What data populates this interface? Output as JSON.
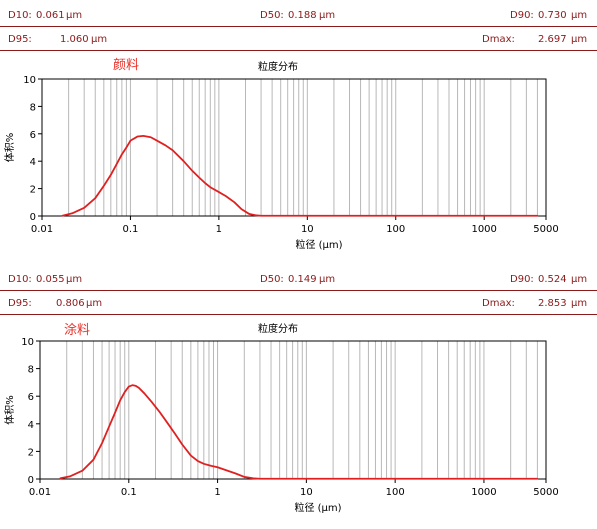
{
  "panels": [
    {
      "d10_label": "D10:",
      "d10_value": "0.061",
      "d10_unit": "μm",
      "d50_label": "D50:",
      "d50_value": "0.188",
      "d50_unit": "μm",
      "d90_label": "D90:",
      "d90_value": "0.730",
      "d90_unit": "μm",
      "d95_label": "D95:",
      "d95_value": "1.060",
      "d95_unit": "μm",
      "dmax_label": "Dmax:",
      "dmax_value": "2.697",
      "dmax_unit": "μm",
      "sample_name": "颜料",
      "chart_title": "粒度分布"
    },
    {
      "d10_label": "D10:",
      "d10_value": "0.055",
      "d10_unit": "μm",
      "d50_label": "D50:",
      "d50_value": "0.149",
      "d50_unit": "μm",
      "d90_label": "D90:",
      "d90_value": "0.524",
      "d90_unit": "μm",
      "d95_label": "D95:",
      "d95_value": "0.806",
      "d95_unit": "μm",
      "dmax_label": "Dmax:",
      "dmax_value": "2.853",
      "dmax_unit": "μm",
      "sample_name": "涂料",
      "chart_title": "粒度分布"
    }
  ],
  "chart_data": [
    {
      "type": "line",
      "title": "粒度分布",
      "xlabel": "粒径 (μm)",
      "ylabel": "体积%",
      "x_scale": "log",
      "xlim": [
        0.01,
        5000
      ],
      "ylim": [
        0,
        10
      ],
      "x_ticks": [
        "0.01",
        "0.1",
        "1",
        "10",
        "100",
        "1000",
        "5000"
      ],
      "y_ticks": [
        "0",
        "2",
        "4",
        "6",
        "8",
        "10"
      ],
      "grid": "vertical",
      "line_color": "#e02020",
      "series": [
        {
          "x": [
            0.017,
            0.022,
            0.03,
            0.04,
            0.05,
            0.06,
            0.07,
            0.08,
            0.09,
            0.1,
            0.12,
            0.14,
            0.17,
            0.2,
            0.25,
            0.3,
            0.4,
            0.5,
            0.6,
            0.7,
            0.8,
            1.0,
            1.2,
            1.5,
            1.8,
            2.2,
            2.6,
            3.0,
            10,
            100,
            1000,
            4000
          ],
          "y": [
            0.02,
            0.2,
            0.6,
            1.3,
            2.2,
            3.0,
            3.8,
            4.5,
            5.0,
            5.5,
            5.8,
            5.85,
            5.75,
            5.5,
            5.15,
            4.8,
            4.0,
            3.3,
            2.8,
            2.4,
            2.1,
            1.75,
            1.45,
            1.0,
            0.5,
            0.15,
            0.05,
            0.02,
            0.02,
            0.02,
            0.02,
            0.02
          ]
        }
      ]
    },
    {
      "type": "line",
      "title": "粒度分布",
      "xlabel": "粒径 (μm)",
      "ylabel": "体积%",
      "x_scale": "log",
      "xlim": [
        0.01,
        5000
      ],
      "ylim": [
        0,
        10
      ],
      "x_ticks": [
        "0.01",
        "0.1",
        "1",
        "10",
        "100",
        "1000",
        "5000"
      ],
      "y_ticks": [
        "0",
        "2",
        "4",
        "6",
        "8",
        "10"
      ],
      "grid": "vertical",
      "line_color": "#e02020",
      "series": [
        {
          "x": [
            0.017,
            0.022,
            0.03,
            0.04,
            0.05,
            0.06,
            0.07,
            0.08,
            0.09,
            0.1,
            0.11,
            0.12,
            0.13,
            0.15,
            0.18,
            0.22,
            0.27,
            0.33,
            0.4,
            0.5,
            0.6,
            0.7,
            0.85,
            1.0,
            1.3,
            1.6,
            2.0,
            2.5,
            3.0,
            10,
            100,
            1000,
            4000
          ],
          "y": [
            0.05,
            0.2,
            0.6,
            1.4,
            2.6,
            3.8,
            4.8,
            5.7,
            6.3,
            6.7,
            6.8,
            6.75,
            6.6,
            6.2,
            5.6,
            4.9,
            4.1,
            3.3,
            2.5,
            1.7,
            1.3,
            1.1,
            0.95,
            0.85,
            0.6,
            0.4,
            0.15,
            0.05,
            0.02,
            0.02,
            0.02,
            0.02,
            0.02
          ]
        }
      ]
    }
  ]
}
